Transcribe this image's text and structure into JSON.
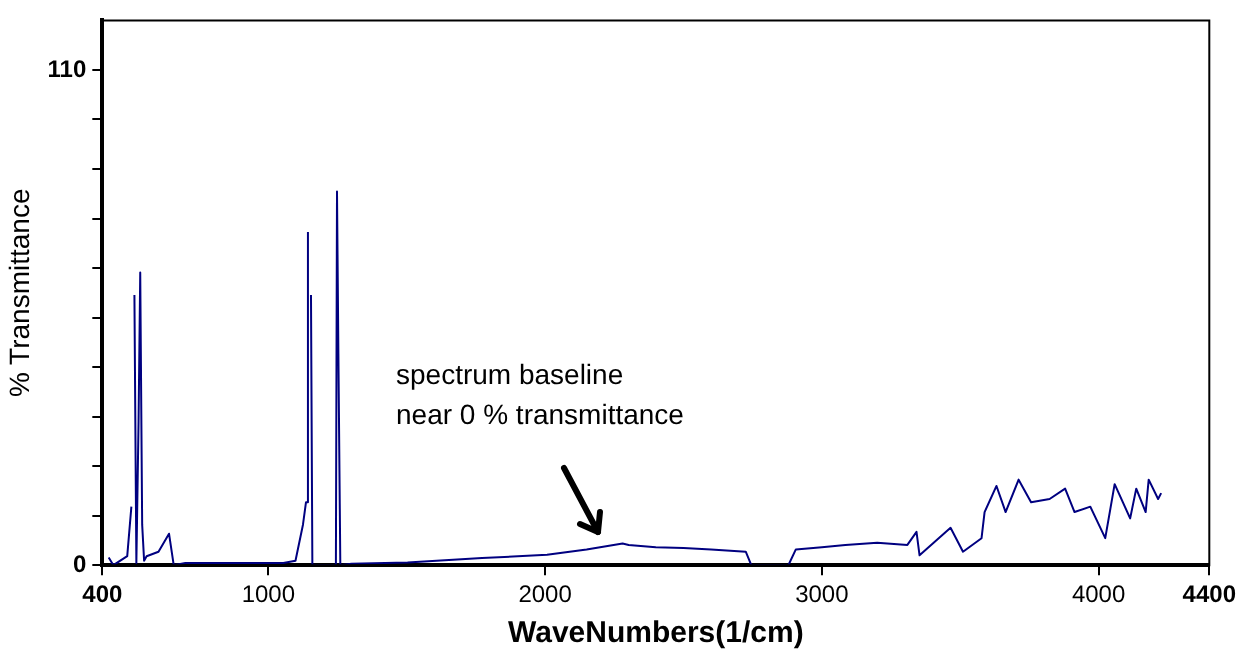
{
  "chart_data": {
    "type": "line",
    "xlabel": "WaveNumbers(1/cm)",
    "ylabel": "% Transmittance",
    "xlim": [
      400,
      4400
    ],
    "xticks": [
      400,
      1000,
      2000,
      3000,
      4000,
      4400
    ],
    "ylim": [
      0,
      121
    ],
    "yticks": [
      0,
      {
        "value": 11,
        "label": null
      },
      {
        "value": 22,
        "label": null
      },
      {
        "value": 33,
        "label": null
      },
      {
        "value": 44,
        "label": null
      },
      {
        "value": 55,
        "label": null
      },
      {
        "value": 66,
        "label": null
      },
      {
        "value": 77,
        "label": null
      },
      {
        "value": 88,
        "label": null
      },
      {
        "value": 99,
        "label": null
      },
      110
    ],
    "legend": false,
    "annotations": [
      "spectrum baseline\nnear 0 % transmittance"
    ],
    "series": [
      {
        "color": "#000080",
        "x": [
          423,
          440,
          490,
          505,
          510,
          516,
          523,
          531,
          537,
          544,
          551,
          560,
          603,
          641,
          658,
          700,
          800,
          900,
          1054,
          1098,
          1125,
          1136,
          1143,
          1148,
          1154,
          1159,
          1200,
          1244,
          1248,
          1253,
          1260,
          1300,
          1503,
          1772,
          2007,
          2150,
          2280,
          2302,
          2400,
          2500,
          2600,
          2725,
          2745,
          2879,
          2906,
          3000,
          3085,
          3200,
          3309,
          3342,
          3353,
          3465,
          3510,
          3577,
          3588,
          3631,
          3664,
          3711,
          3756,
          3823,
          3879,
          3913,
          3970,
          4024,
          4058,
          4114,
          4136,
          4170,
          4181,
          4215,
          4226
        ],
        "values": [
          1.7,
          0,
          2,
          13,
          null,
          60,
          0.5,
          32,
          65,
          9,
          1,
          2,
          3,
          7,
          0,
          0.5,
          0.5,
          0.5,
          0.5,
          1,
          9,
          14,
          74,
          null,
          60,
          0,
          0,
          0,
          83,
          47,
          0,
          0.3,
          0.6,
          1.6,
          2.3,
          3.5,
          4.8,
          4.5,
          4,
          3.8,
          3.5,
          3,
          0,
          0,
          3.5,
          4,
          4.5,
          5,
          4.5,
          7.4,
          2.2,
          8.3,
          3,
          6,
          11.8,
          17.6,
          11.8,
          19,
          14,
          14.7,
          17,
          11.8,
          13,
          6,
          18,
          10.4,
          17,
          11.8,
          19,
          14.7,
          16
        ]
      }
    ]
  }
}
